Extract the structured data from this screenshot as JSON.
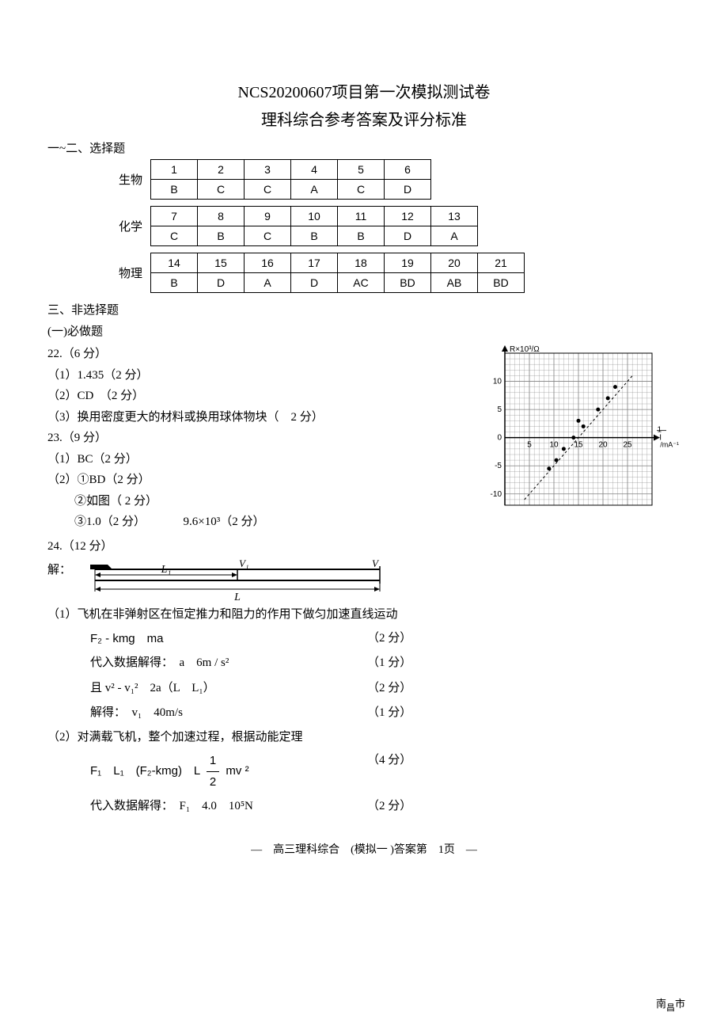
{
  "title": "NCS20200607项目第一次模拟测试卷",
  "subtitle": "理科综合参考答案及评分标准",
  "section1_head": "一~二、选择题",
  "tables": [
    {
      "label": "生物",
      "headers": [
        "1",
        "2",
        "3",
        "4",
        "5",
        "6"
      ],
      "answers": [
        "B",
        "C",
        "C",
        "A",
        "C",
        "D"
      ]
    },
    {
      "label": "化学",
      "headers": [
        "7",
        "8",
        "9",
        "10",
        "11",
        "12",
        "13"
      ],
      "answers": [
        "C",
        "B",
        "C",
        "B",
        "B",
        "D",
        "A"
      ]
    },
    {
      "label": "物理",
      "headers": [
        "14",
        "15",
        "16",
        "17",
        "18",
        "19",
        "20",
        "21"
      ],
      "answers": [
        "B",
        "D",
        "A",
        "D",
        "AC",
        "BD",
        "AB",
        "BD"
      ]
    }
  ],
  "section3_head": "三、非选择题",
  "req_head": "(一)必做题",
  "q22": {
    "head": "22.（6 分）",
    "l1": "（1）1.435（2 分）",
    "l2": "（2）CD　（2 分）",
    "l3": "（3）换用密度更大的材料或换用球体物块（　2 分）"
  },
  "q23": {
    "head": "23.（9 分）",
    "l1": "（1）BC（2 分）",
    "l2": "（2）①BD（2 分）",
    "l3": "②如图（ 2 分）",
    "l4a": "③1.0（2 分）",
    "l4b": "9.6×10³（2 分）"
  },
  "q24": {
    "head": "24.（12 分）",
    "jie": "解：",
    "p1_head": "（1）飞机在非弹射区在恒定推力和阻力的作用下做匀加速直线运动",
    "eq1": "F₂ - kmg　ma",
    "pt1": "（2 分）",
    "eq2": "代入数据解得：　a　6m / s²",
    "pt2": "（1 分）",
    "eq3": "且 v² - v₁²　2a（L　L₁）",
    "pt3": "（2 分）",
    "eq4": "解得：　v₁　40m/s",
    "pt4": "（1 分）",
    "p2_head": "（2）对满载飞机，整个加速过程，根据动能定理",
    "eq5_pre": "F₁　L₁　(F₂-kmg)　L",
    "eq5_frac_num": "1",
    "eq5_frac_den": "2",
    "eq5_post": "mv ²",
    "pt5": "（4 分）",
    "eq6": "代入数据解得：　F₁　4.0　10⁵N",
    "pt6": "（2 分）"
  },
  "footer": "—　高三理科综合　(模拟一 )答案第　1页　—",
  "watermark": {
    "a": "南",
    "b": "昌",
    "c": "市"
  },
  "chart": {
    "ylabel": "R×10³/Ω",
    "xlabel": "1/I /mA⁻¹",
    "xlim": [
      0,
      30
    ],
    "ylim": [
      -12,
      15
    ],
    "xticks": [
      5,
      10,
      15,
      20,
      25
    ],
    "yticks": [
      -10,
      -5,
      0,
      5,
      10
    ],
    "grid_color": "#808080",
    "axis_color": "#000000",
    "line_start": [
      4,
      -11
    ],
    "line_end": [
      26,
      11
    ],
    "points": [
      [
        9,
        -5.5
      ],
      [
        10.5,
        -4
      ],
      [
        12,
        -2
      ],
      [
        14,
        0
      ],
      [
        15,
        3
      ],
      [
        16,
        2
      ],
      [
        19,
        5
      ],
      [
        21,
        7
      ],
      [
        22.5,
        9
      ]
    ]
  },
  "diagram": {
    "L_label": "L",
    "L1_label": "L₁",
    "V_label": "V",
    "V1_label": "V₁"
  }
}
